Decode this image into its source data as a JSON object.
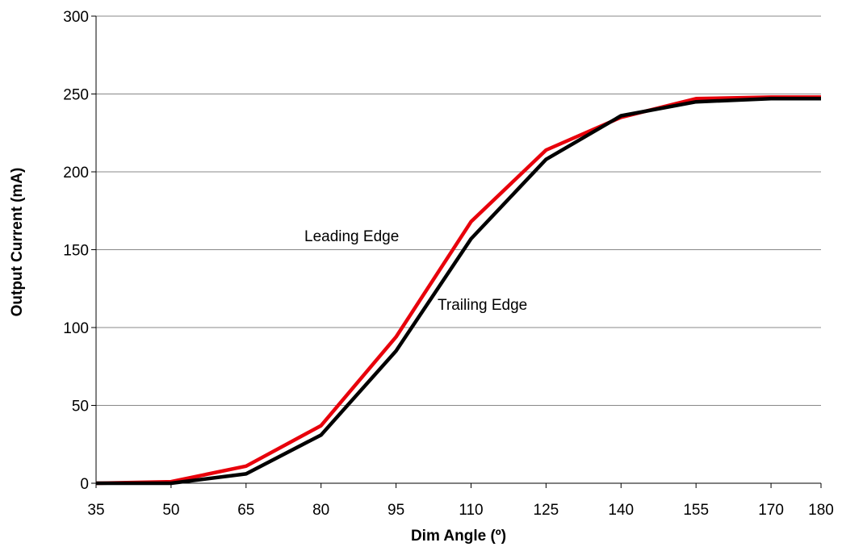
{
  "chart_data": {
    "type": "line",
    "xlabel": "Dim Angle (º)",
    "ylabel": "Output Current (mA)",
    "x": [
      35,
      50,
      65,
      80,
      95,
      110,
      125,
      140,
      155,
      170,
      180
    ],
    "xlim": [
      35,
      180
    ],
    "ylim": [
      0,
      300
    ],
    "yticks": [
      0,
      50,
      100,
      150,
      200,
      250,
      300
    ],
    "grid": "horizontal",
    "series": [
      {
        "name": "Leading Edge",
        "color": "#e8000b",
        "values": [
          0,
          1,
          11,
          37,
          94,
          168,
          214,
          235,
          247,
          248,
          248
        ]
      },
      {
        "name": "Trailing Edge",
        "color": "#000000",
        "values": [
          0,
          0,
          6,
          31,
          85,
          157,
          208,
          236,
          245,
          247,
          247
        ]
      }
    ]
  }
}
